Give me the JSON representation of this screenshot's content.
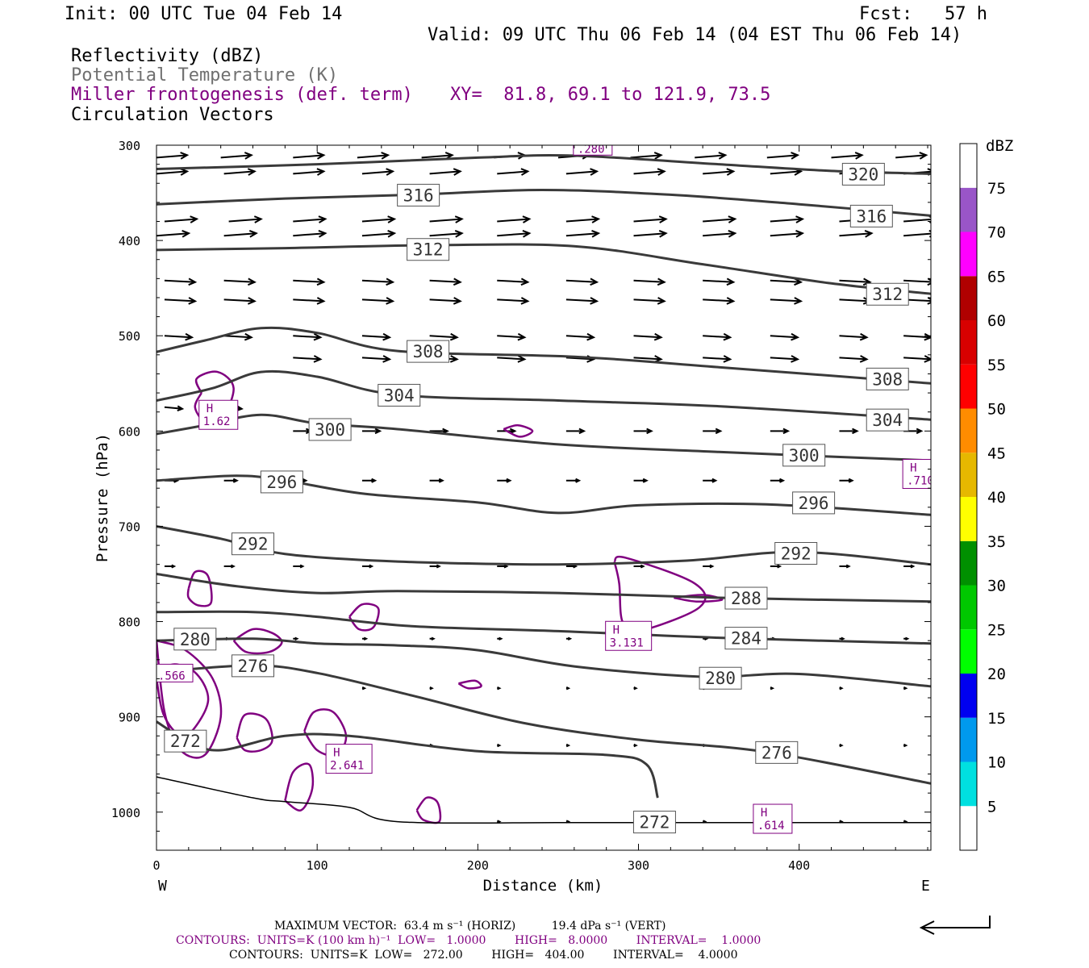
{
  "header": {
    "init": "Init: 00 UTC Tue 04 Feb 14",
    "fcst": "Fcst:   57 h",
    "valid": "Valid: 09 UTC Thu 06 Feb 14 (04 EST Thu 06 Feb 14)",
    "field1": "Reflectivity (dBZ)",
    "field2": "Potential Temperature (K)",
    "field3": "Miller frontogenesis (def. term)",
    "xy": "XY=  81.8, 69.1 to 121.9, 73.5",
    "field4": "Circulation Vectors"
  },
  "footer": {
    "max_vector": "MAXIMUM VECTOR:  63.4 m s⁻¹ (HORIZ)          19.4 dPa s⁻¹ (VERT)",
    "contours_fronto": "CONTOURS:  UNITS=K (100 km h)⁻¹  LOW=   1.0000        HIGH=   8.0000        INTERVAL=    1.0000",
    "contours_theta": "CONTOURS:  UNITS=K  LOW=   272.00        HIGH=   404.00        INTERVAL=    4.0000"
  },
  "chart_data": {
    "type": "cross-section",
    "xlabel": "Distance (km)",
    "ylabel": "Pressure (hPa)",
    "xlim": [
      0,
      482
    ],
    "ylim": [
      300,
      1040
    ],
    "x_ticks": [
      0,
      100,
      200,
      300,
      400
    ],
    "y_ticks": [
      300,
      400,
      500,
      600,
      700,
      800,
      900,
      1000
    ],
    "x_end_labels": {
      "left": "W",
      "right": "E"
    },
    "colorbar": {
      "title": "dBZ",
      "levels": [
        5,
        10,
        15,
        20,
        25,
        30,
        35,
        40,
        45,
        50,
        55,
        60,
        65,
        70,
        75
      ],
      "colors": [
        "#ffffff",
        "#00e0e0",
        "#0099ee",
        "#0000f0",
        "#00ff00",
        "#00c800",
        "#009000",
        "#ffff00",
        "#e6b800",
        "#ff8c00",
        "#ff0000",
        "#d80000",
        "#b00000",
        "#ff00ff",
        "#9955c8",
        "#ffffff"
      ]
    },
    "theta_contours": [
      {
        "value": 320,
        "label": "320",
        "line": [
          [
            0,
            325
          ],
          [
            100,
            320
          ],
          [
            200,
            313
          ],
          [
            260,
            311
          ],
          [
            350,
            320
          ],
          [
            420,
            327
          ],
          [
            482,
            330
          ]
        ],
        "labels_at": [
          [
            440,
            330
          ]
        ]
      },
      {
        "value": 316,
        "label": "316",
        "line": [
          [
            0,
            362
          ],
          [
            80,
            356
          ],
          [
            160,
            352
          ],
          [
            240,
            347
          ],
          [
            320,
            352
          ],
          [
            400,
            362
          ],
          [
            482,
            374
          ]
        ],
        "labels_at": [
          [
            163,
            352
          ],
          [
            445,
            374
          ]
        ]
      },
      {
        "value": 312,
        "label": "312",
        "line": [
          [
            0,
            410
          ],
          [
            80,
            408
          ],
          [
            170,
            405
          ],
          [
            260,
            406
          ],
          [
            340,
            425
          ],
          [
            420,
            445
          ],
          [
            482,
            456
          ]
        ],
        "labels_at": [
          [
            169,
            409
          ],
          [
            455,
            456
          ]
        ]
      },
      {
        "value": 308,
        "label": "308",
        "line": [
          [
            0,
            517
          ],
          [
            30,
            505
          ],
          [
            65,
            492
          ],
          [
            100,
            497
          ],
          [
            150,
            516
          ],
          [
            260,
            522
          ],
          [
            350,
            533
          ],
          [
            482,
            550
          ]
        ],
        "labels_at": [
          [
            169,
            516
          ],
          [
            455,
            545
          ]
        ]
      },
      {
        "value": 304,
        "label": "304",
        "line": [
          [
            0,
            568
          ],
          [
            35,
            555
          ],
          [
            65,
            538
          ],
          [
            100,
            543
          ],
          [
            150,
            562
          ],
          [
            250,
            568
          ],
          [
            350,
            574
          ],
          [
            482,
            588
          ]
        ],
        "labels_at": [
          [
            151,
            562
          ],
          [
            455,
            588
          ]
        ]
      },
      {
        "value": 300,
        "label": "300",
        "line": [
          [
            0,
            603
          ],
          [
            30,
            594
          ],
          [
            65,
            583
          ],
          [
            100,
            592
          ],
          [
            150,
            598
          ],
          [
            250,
            614
          ],
          [
            350,
            622
          ],
          [
            482,
            631
          ]
        ],
        "labels_at": [
          [
            108,
            598
          ],
          [
            403,
            625
          ]
        ]
      },
      {
        "value": 296,
        "label": "296",
        "line": [
          [
            0,
            652
          ],
          [
            50,
            647
          ],
          [
            80,
            652
          ],
          [
            130,
            666
          ],
          [
            200,
            675
          ],
          [
            250,
            686
          ],
          [
            300,
            678
          ],
          [
            380,
            677
          ],
          [
            482,
            688
          ]
        ],
        "labels_at": [
          [
            78,
            653
          ],
          [
            409,
            675
          ]
        ]
      },
      {
        "value": 292,
        "label": "292",
        "line": [
          [
            0,
            700
          ],
          [
            40,
            713
          ],
          [
            80,
            729
          ],
          [
            150,
            737
          ],
          [
            250,
            740
          ],
          [
            330,
            736
          ],
          [
            400,
            727
          ],
          [
            482,
            740
          ]
        ],
        "labels_at": [
          [
            60,
            718
          ],
          [
            398,
            728
          ]
        ]
      },
      {
        "value": 288,
        "label": "288",
        "line": [
          [
            0,
            750
          ],
          [
            50,
            763
          ],
          [
            100,
            770
          ],
          [
            150,
            768
          ],
          [
            250,
            770
          ],
          [
            350,
            775
          ],
          [
            482,
            779
          ]
        ],
        "labels_at": [
          [
            367,
            775
          ]
        ]
      },
      {
        "value": 284,
        "label": "284",
        "line": [
          [
            0,
            790
          ],
          [
            60,
            790
          ],
          [
            100,
            795
          ],
          [
            160,
            805
          ],
          [
            250,
            810
          ],
          [
            350,
            817
          ],
          [
            482,
            823
          ]
        ],
        "labels_at": [
          [
            367,
            817
          ]
        ]
      },
      {
        "value": 280,
        "label": "280",
        "line": [
          [
            0,
            820
          ],
          [
            60,
            818
          ],
          [
            100,
            823
          ],
          [
            150,
            825
          ],
          [
            200,
            830
          ],
          [
            260,
            847
          ],
          [
            340,
            858
          ],
          [
            400,
            855
          ],
          [
            482,
            868
          ]
        ],
        "labels_at": [
          [
            24,
            818
          ],
          [
            351,
            859
          ]
        ]
      },
      {
        "value": 276,
        "label": "276",
        "line": [
          [
            0,
            853
          ],
          [
            60,
            846
          ],
          [
            100,
            854
          ],
          [
            160,
            878
          ],
          [
            230,
            907
          ],
          [
            300,
            924
          ],
          [
            380,
            937
          ],
          [
            482,
            970
          ]
        ],
        "labels_at": [
          [
            60,
            846
          ],
          [
            386,
            937
          ]
        ]
      },
      {
        "value": 272,
        "label": "272",
        "line": [
          [
            0,
            905
          ],
          [
            20,
            926
          ],
          [
            40,
            935
          ],
          [
            80,
            920
          ],
          [
            120,
            920
          ],
          [
            200,
            936
          ],
          [
            280,
            940
          ],
          [
            305,
            950
          ],
          [
            312,
            985
          ]
        ],
        "labels_at": [
          [
            18,
            925
          ]
        ]
      }
    ],
    "theta_272_thin": {
      "label": "272",
      "line": [
        [
          0,
          963
        ],
        [
          60,
          985
        ],
        [
          80,
          989
        ],
        [
          120,
          995
        ],
        [
          150,
          1010
        ],
        [
          250,
          1011
        ],
        [
          320,
          1011
        ],
        [
          482,
          1011
        ]
      ],
      "labels_at": [
        [
          310,
          1010
        ]
      ]
    },
    "frontogenesis_maxima": [
      {
        "marker": "H",
        "value": "1.62",
        "x": 28,
        "p": 583
      },
      {
        "marker": "H",
        "value": "3.131",
        "x": 281,
        "p": 815
      },
      {
        "marker": "H",
        "value": "2.641",
        "x": 107,
        "p": 944
      },
      {
        "marker": "H",
        "value": ".614",
        "x": 373,
        "p": 1007
      },
      {
        "marker": "H",
        "value": ".710",
        "x": 466,
        "p": 645
      },
      {
        "marker": "",
        "value": ".566",
        "x": 0,
        "p": 860
      },
      {
        "marker": "",
        "value": ".280",
        "x": 261,
        "p": 307
      }
    ]
  }
}
